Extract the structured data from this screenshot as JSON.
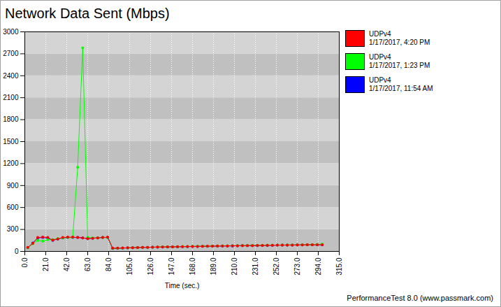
{
  "chart_data": {
    "type": "line",
    "title": "Network Data Sent (Mbps)",
    "x_label": "Time (sec.)",
    "note": "PerformanceTest 8.0 (www.passmark.com)",
    "grid": true,
    "legend": "right",
    "marker": "circle",
    "xlim": [
      0,
      315
    ],
    "xticks": [
      {
        "value": 0,
        "label": "0.0"
      },
      {
        "value": 21,
        "label": "21.0"
      },
      {
        "value": 42,
        "label": "42.0"
      },
      {
        "value": 63,
        "label": "63.0"
      },
      {
        "value": 84,
        "label": "84.0"
      },
      {
        "value": 105,
        "label": "105.0"
      },
      {
        "value": 126,
        "label": "126.0"
      },
      {
        "value": 147,
        "label": "147.0"
      },
      {
        "value": 168,
        "label": "168.0"
      },
      {
        "value": 189,
        "label": "189.0"
      },
      {
        "value": 210,
        "label": "210.0"
      },
      {
        "value": 231,
        "label": "231.0"
      },
      {
        "value": 252,
        "label": "252.0"
      },
      {
        "value": 273,
        "label": "273.0"
      },
      {
        "value": 294,
        "label": "294.0"
      },
      {
        "value": 315,
        "label": "315.0"
      }
    ],
    "ylim": [
      0,
      3000
    ],
    "yticks": [
      0,
      300,
      600,
      900,
      1200,
      1500,
      1800,
      2100,
      2400,
      2700,
      3000
    ],
    "x": [
      3,
      8,
      13,
      18,
      23,
      28,
      33,
      38,
      43,
      48,
      53,
      58,
      63,
      68,
      73,
      78,
      83,
      88,
      93,
      98,
      103,
      108,
      113,
      118,
      123,
      128,
      133,
      138,
      143,
      148,
      153,
      158,
      163,
      168,
      173,
      178,
      183,
      188,
      193,
      198,
      203,
      208,
      213,
      218,
      223,
      228,
      233,
      238,
      243,
      248,
      253,
      258,
      263,
      268,
      273,
      278,
      283,
      288,
      293,
      298
    ],
    "series": [
      {
        "name": "UDPv4",
        "date": "1/17/2017, 4:20 PM",
        "color": "#ff0000",
        "values": [
          55,
          110,
          190,
          195,
          190,
          155,
          170,
          190,
          195,
          195,
          190,
          185,
          175,
          180,
          185,
          190,
          195,
          45,
          45,
          47,
          50,
          50,
          53,
          55,
          56,
          57,
          60,
          60,
          62,
          62,
          64,
          65,
          66,
          68,
          68,
          70,
          71,
          72,
          73,
          74,
          75,
          76,
          77,
          78,
          79,
          80,
          81,
          82,
          83,
          84,
          85,
          86,
          86,
          87,
          88,
          89,
          90,
          90,
          91,
          90
        ]
      },
      {
        "name": "UDPv4",
        "date": "1/17/2017, 1:23 PM",
        "color": "#00ff00",
        "values": [
          50,
          105,
          150,
          140,
          160,
          160,
          175,
          185,
          190,
          190,
          1150,
          2780,
          190,
          185,
          185,
          190,
          190,
          42,
          44,
          46,
          48,
          51,
          53,
          54,
          56,
          58,
          59,
          61,
          62,
          63,
          65,
          66,
          67,
          69,
          70,
          71,
          72,
          73,
          74,
          76,
          77,
          78,
          79,
          80,
          81,
          82,
          83,
          84,
          85,
          86,
          87,
          87,
          88,
          89,
          89,
          90,
          91,
          92,
          95,
          100
        ]
      },
      {
        "name": "UDPv4",
        "date": "1/17/2017, 11:54 AM",
        "color": "#0000ff",
        "values": [
          50,
          115,
          185,
          190,
          185,
          150,
          170,
          185,
          190,
          190,
          190,
          185,
          175,
          180,
          185,
          190,
          190,
          40,
          42,
          45,
          48,
          50,
          52,
          55,
          55,
          57,
          58,
          60,
          60,
          62,
          63,
          65,
          65,
          67,
          68,
          70,
          70,
          72,
          72,
          73,
          75,
          75,
          77,
          78,
          78,
          80,
          80,
          82,
          82,
          83,
          85,
          85,
          87,
          87,
          88,
          88,
          90,
          90,
          90,
          90
        ]
      }
    ]
  }
}
